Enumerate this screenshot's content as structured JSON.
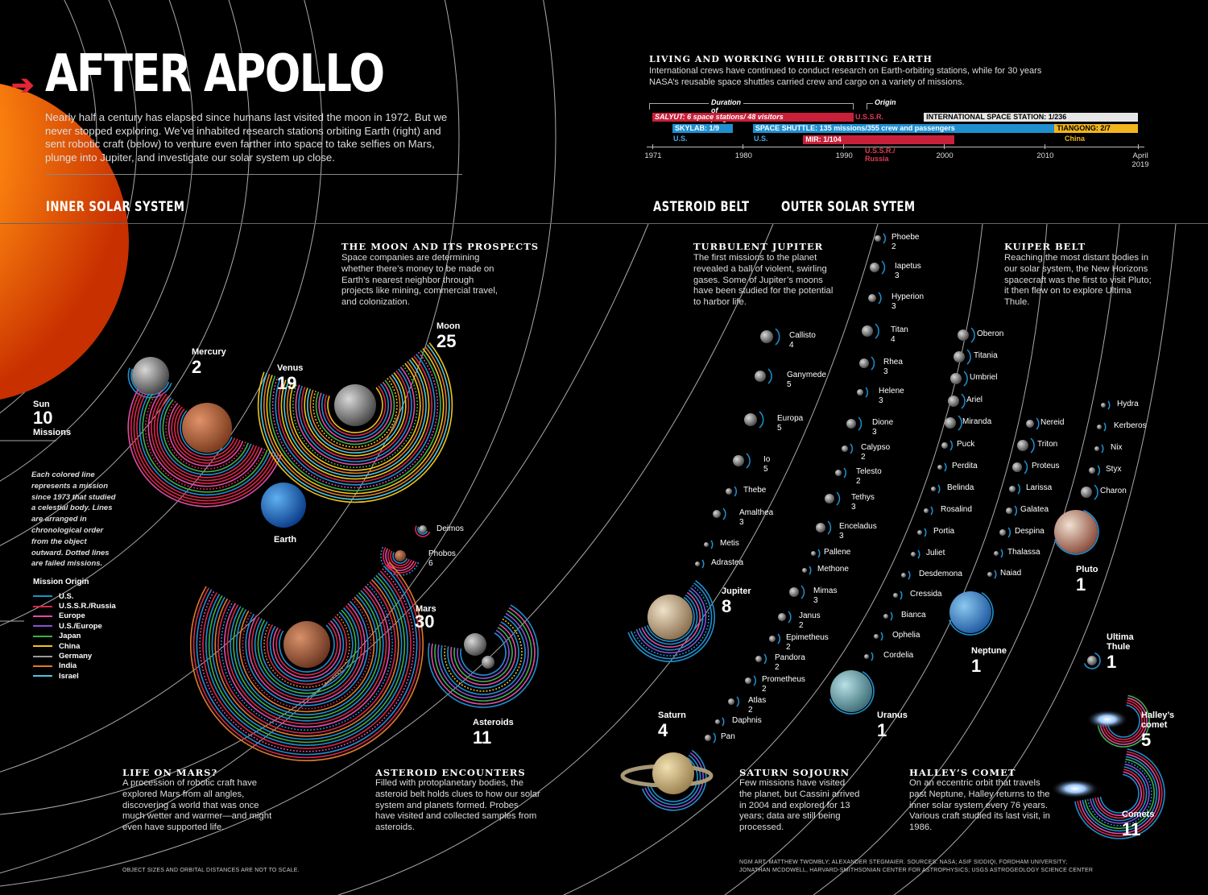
{
  "header": {
    "title": "AFTER APOLLO",
    "intro": "Nearly half a century has elapsed since humans last visited the moon in 1972. But we never stopped exploring. We’ve inhabited research stations orbiting Earth (right) and sent robotic craft (below) to venture even farther into space to take selfies on Mars, plunge into Jupiter, and investigate our solar system up close."
  },
  "sections": {
    "inner": "INNER SOLAR SYSTEM",
    "belt": "ASTEROID BELT",
    "outer": "OUTER SOLAR SYTEM"
  },
  "orbiting": {
    "heading": "LIVING AND WORKING WHILE ORBITING EARTH",
    "text": "International crews have continued to conduct research on Earth-orbiting stations, while for 30 years NASA’s reusable space shuttles carried crew and cargo on a variety of missions.",
    "duration_label": "Duration of program",
    "origin_label": "Origin",
    "years": [
      "1971",
      "1980",
      "1990",
      "2000",
      "2010",
      "April 2019"
    ],
    "programs": [
      {
        "name": "SALYUT: 6 space stations/ 48 visitors",
        "origin": "U.S.S.R.",
        "start": 1971,
        "end": 1991,
        "color": "#c8203a"
      },
      {
        "name": "SKYLAB: 1/9",
        "origin": "U.S.",
        "start": 1973,
        "end": 1979,
        "color": "#1f8fd0"
      },
      {
        "name": "SPACE SHUTTLE: 135 missions/355 crew and passengers",
        "origin": "U.S.",
        "start": 1981,
        "end": 2011,
        "color": "#1f8fd0"
      },
      {
        "name": "MIR: 1/104",
        "origin": "U.S.S.R./ Russia",
        "start": 1986,
        "end": 2001,
        "color": "#c8203a"
      },
      {
        "name": "INTERNATIONAL SPACE STATION: 1/236",
        "origin": "",
        "start": 1998,
        "end": 2019.3,
        "color": "#e6e6e6"
      },
      {
        "name": "TIANGONG: 2/7",
        "origin": "China",
        "start": 2011,
        "end": 2019.3,
        "color": "#f2b51d"
      }
    ]
  },
  "inner_bodies": {
    "sun": {
      "name": "Sun",
      "count": "10",
      "suffix": "Missions"
    },
    "mercury": {
      "name": "Mercury",
      "count": "2"
    },
    "venus": {
      "name": "Venus",
      "count": "19"
    },
    "earth": {
      "name": "Earth"
    },
    "moon": {
      "name": "Moon",
      "count": "25"
    },
    "mars": {
      "name": "Mars",
      "count": "30"
    },
    "deimos": {
      "name": "Deimos"
    },
    "phobos": {
      "name": "Phobos",
      "count": "6"
    },
    "asteroids": {
      "name": "Asteroids",
      "count": "11"
    }
  },
  "moon_prospects": {
    "heading": "THE MOON AND ITS PROSPECTS",
    "text": "Space companies are determining whether there’s money to be made on Earth’s nearest neighbor through projects like mining, commercial travel, and colonization."
  },
  "note": "Each colored line represents a mission since 1973 that studied a celestial body. Lines are arranged in chronological order from the object outward. Dotted lines are failed missions.",
  "legend": {
    "title": "Mission Origin",
    "items": [
      {
        "label": "U.S.",
        "color": "#1f8fd0"
      },
      {
        "label": "U.S.S.R./Russia",
        "color": "#d9284a"
      },
      {
        "label": "Europe",
        "color": "#e24aa7"
      },
      {
        "label": "U.S./Europe",
        "color": "#8a4fd6"
      },
      {
        "label": "Japan",
        "color": "#3fb04a"
      },
      {
        "label": "China",
        "color": "#f2c318"
      },
      {
        "label": "Germany",
        "color": "#9a9a9a"
      },
      {
        "label": "India",
        "color": "#e07a2a"
      },
      {
        "label": "Israel",
        "color": "#49c6e5"
      }
    ]
  },
  "stories": {
    "mars": {
      "heading": "LIFE ON MARS?",
      "text": "A procession of robotic craft have explored Mars from all angles, discovering a world that was once much wetter and warmer—and might even have supported life."
    },
    "asteroid": {
      "heading": "ASTEROID ENCOUNTERS",
      "text": "Filled with protoplanetary bodies, the asteroid belt holds clues to how our solar system and planets formed. Probes have visited and collected samples from asteroids."
    },
    "jupiter": {
      "heading": "TURBULENT JUPITER",
      "text": "The first missions to the planet revealed a ball of violent, swirling gases. Some of Jupiter’s moons have been studied for the potential to harbor life."
    },
    "kuiper": {
      "heading": "KUIPER BELT",
      "text": "Reaching the most distant bodies in our solar system, the New Horizons spacecraft was the first to visit Pluto; it then flew on to explore Ultima Thule."
    },
    "saturn": {
      "heading": "SATURN SOJOURN",
      "text": "Few missions have visited the planet, but Cassini arrived in 2004 and explored for 13 years; data are still being processed."
    },
    "halley": {
      "heading": "HALLEY’S COMET",
      "text": "On an eccentric orbit that travels past Neptune, Halley returns to the inner solar system every 76 years. Various craft studied its last visit, in 1986."
    }
  },
  "outer_bodies": {
    "jupiter": {
      "name": "Jupiter",
      "count": "8"
    },
    "saturn": {
      "name": "Saturn",
      "count": "4"
    },
    "uranus": {
      "name": "Uranus",
      "count": "1"
    },
    "neptune": {
      "name": "Neptune",
      "count": "1"
    },
    "pluto": {
      "name": "Pluto",
      "count": "1"
    },
    "ultima": {
      "name": "Ultima Thule",
      "count": "1"
    },
    "halley": {
      "name": "Halley’s comet",
      "count": "5"
    },
    "comets": {
      "name": "Comets",
      "count": "11"
    }
  },
  "jupiter_moons": [
    {
      "name": "Callisto",
      "count": "4"
    },
    {
      "name": "Ganymede",
      "count": "5"
    },
    {
      "name": "Europa",
      "count": "5"
    },
    {
      "name": "Io",
      "count": "5"
    },
    {
      "name": "Thebe",
      "count": ""
    },
    {
      "name": "Amalthea",
      "count": "3"
    },
    {
      "name": "Metis",
      "count": ""
    },
    {
      "name": "Adrastea",
      "count": ""
    }
  ],
  "saturn_moons": [
    {
      "name": "Phoebe",
      "count": "2"
    },
    {
      "name": "Iapetus",
      "count": "3"
    },
    {
      "name": "Hyperion",
      "count": "3"
    },
    {
      "name": "Titan",
      "count": "4"
    },
    {
      "name": "Rhea",
      "count": "3"
    },
    {
      "name": "Helene",
      "count": "3"
    },
    {
      "name": "Dione",
      "count": "3"
    },
    {
      "name": "Calypso",
      "count": "2"
    },
    {
      "name": "Telesto",
      "count": "2"
    },
    {
      "name": "Tethys",
      "count": "3"
    },
    {
      "name": "Enceladus",
      "count": "3"
    },
    {
      "name": "Pallene",
      "count": ""
    },
    {
      "name": "Methone",
      "count": ""
    },
    {
      "name": "Mimas",
      "count": "3"
    },
    {
      "name": "Janus",
      "count": "2"
    },
    {
      "name": "Epimetheus",
      "count": "2"
    },
    {
      "name": "Pandora",
      "count": "2"
    },
    {
      "name": "Prometheus",
      "count": "2"
    },
    {
      "name": "Atlas",
      "count": "2"
    },
    {
      "name": "Daphnis",
      "count": ""
    },
    {
      "name": "Pan",
      "count": ""
    }
  ],
  "uranus_moons": [
    "Oberon",
    "Titania",
    "Umbriel",
    "Ariel",
    "Miranda",
    "Puck",
    "Perdita",
    "Belinda",
    "Rosalind",
    "Portia",
    "Juliet",
    "Desdemona",
    "Cressida",
    "Bianca",
    "Ophelia",
    "Cordelia"
  ],
  "neptune_moons": [
    "Nereid",
    "Triton",
    "Proteus",
    "Larissa",
    "Galatea",
    "Despina",
    "Thalassa",
    "Naiad"
  ],
  "pluto_moons": [
    "Hydra",
    "Kerberos",
    "Nix",
    "Styx",
    "Charon"
  ],
  "footer": {
    "left": "OBJECT SIZES AND ORBITAL DISTANCES ARE NOT TO SCALE.",
    "credit1": "NGM ART. MATTHEW TWOMBLY; ALEXANDER STEGMAIER. SOURCES: NASA; ASIF SIDDIQI, FORDHAM UNIVERSITY;",
    "credit2": "JONATHAN MCDOWELL, HARVARD-SMITHSONIAN CENTER FOR ASTROPHYSICS; USGS ASTROGEOLOGY SCIENCE CENTER"
  }
}
